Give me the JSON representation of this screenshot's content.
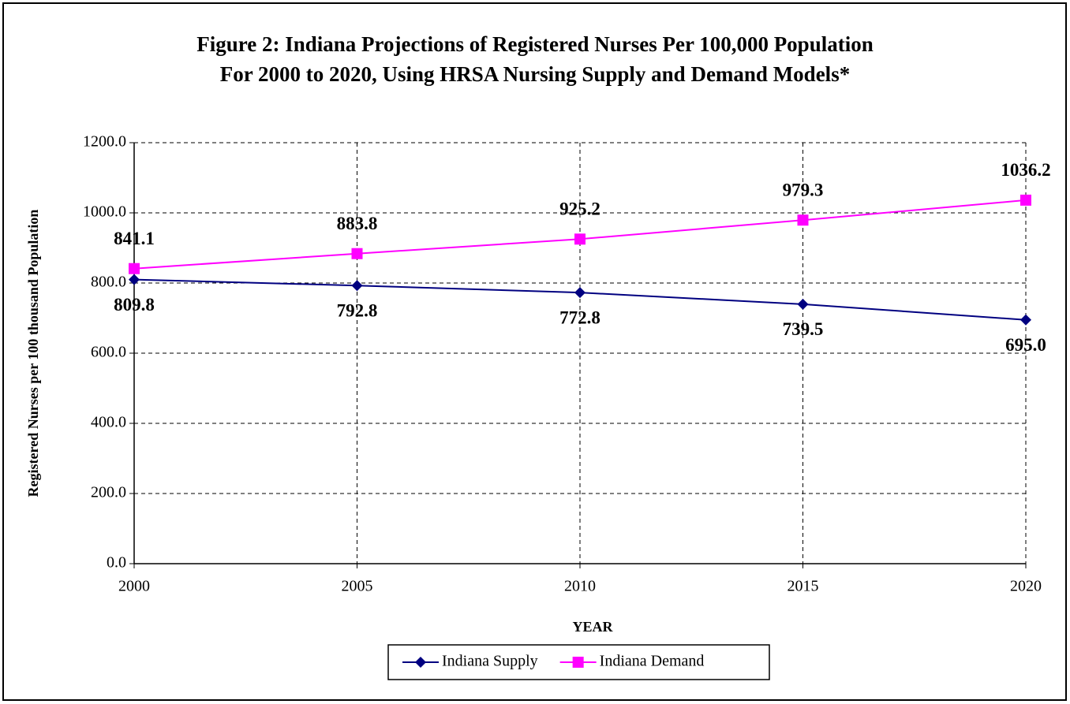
{
  "chart_data": {
    "type": "line",
    "title": [
      "Figure 2: Indiana Projections of Registered Nurses Per 100,000 Population",
      "For 2000 to 2020, Using HRSA Nursing Supply and Demand Models*"
    ],
    "x_label": "YEAR",
    "y_label": "Registered Nurses per 100 thousand Population",
    "x": [
      2000,
      2005,
      2010,
      2015,
      2020
    ],
    "xlim": [
      2000,
      2020
    ],
    "xticks": [
      2000,
      2005,
      2010,
      2015,
      2020
    ],
    "ylim": [
      0,
      1200
    ],
    "yticks": [
      {
        "value": 0,
        "label": "0.0"
      },
      {
        "value": 200,
        "label": "200.0"
      },
      {
        "value": 400,
        "label": "400.0"
      },
      {
        "value": 600,
        "label": "600.0"
      },
      {
        "value": 800,
        "label": "800.0"
      },
      {
        "value": 1000,
        "label": "1000.0"
      },
      {
        "value": 1200,
        "label": "1200.0"
      }
    ],
    "grid": true,
    "legend": "bottom",
    "series": [
      {
        "name": "Indiana Supply",
        "color": "#000080",
        "marker": "diamond",
        "values": [
          809.8,
          792.8,
          772.8,
          739.5,
          695
        ],
        "value_labels": [
          "809.8",
          "792.8",
          "772.8",
          "739.5",
          "695.0"
        ]
      },
      {
        "name": "Indiana Demand",
        "color": "#ff00ff",
        "marker": "square",
        "values": [
          841.1,
          883.8,
          925.2,
          979.3,
          1036.2
        ],
        "value_labels": [
          "841.1",
          "883.8",
          "925.2",
          "979.3",
          "1036.2"
        ]
      }
    ]
  }
}
